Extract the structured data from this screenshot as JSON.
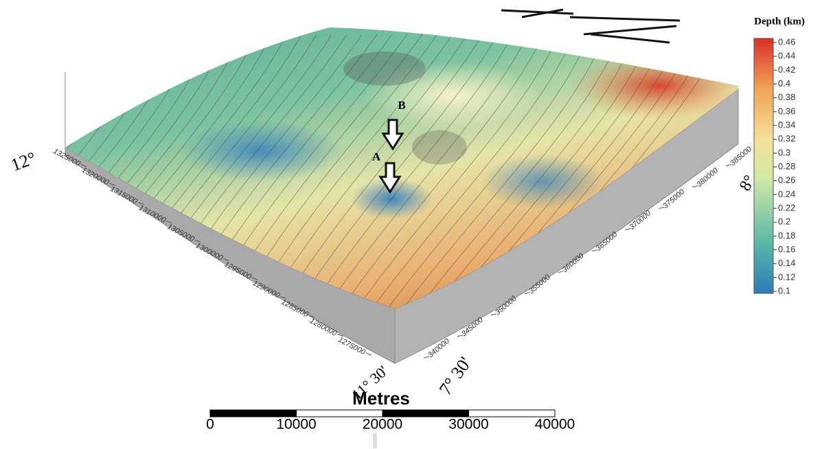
{
  "colorbar": {
    "title": "Depth (km)",
    "lim": [
      0.1,
      0.46
    ],
    "ticks": [
      0.1,
      0.12,
      0.14,
      0.16,
      0.18,
      0.2,
      0.22,
      0.24,
      0.26,
      0.28,
      0.3,
      0.32,
      0.34,
      0.36,
      0.38,
      0.4,
      0.42,
      0.44,
      0.46
    ]
  },
  "northing_axis": {
    "ticks": [
      1325000,
      1320000,
      1315000,
      1310000,
      1305000,
      1300000,
      1295000,
      1290000,
      1285000,
      1280000,
      1275000
    ]
  },
  "easting_axis": {
    "ticks": [
      340000,
      345000,
      350000,
      355000,
      360000,
      365000,
      370000,
      375000,
      380000,
      385000
    ]
  },
  "corner_labels": [
    "12°",
    "11° 30'",
    "7° 30'",
    "8°"
  ],
  "markers": [
    "A",
    "B"
  ],
  "scale_bar": {
    "title": "Metres",
    "ticks": [
      0,
      10000,
      20000,
      30000,
      40000
    ]
  }
}
